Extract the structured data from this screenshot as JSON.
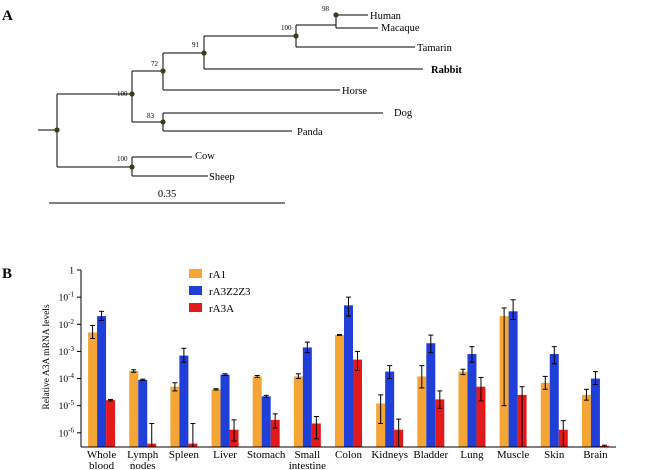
{
  "panel_a": {
    "label": "A",
    "scale_label": "0.35",
    "highlight_color": "#e31a1c",
    "node_color": "#3b3b14",
    "leaves": [
      {
        "id": "human",
        "name": "Human",
        "highlight": false
      },
      {
        "id": "macaque",
        "name": "Macaque",
        "highlight": false
      },
      {
        "id": "tamarin",
        "name": "Tamarin",
        "highlight": false
      },
      {
        "id": "rabbit",
        "name": "Rabbit",
        "highlight": true
      },
      {
        "id": "horse",
        "name": "Horse",
        "highlight": false
      },
      {
        "id": "dog",
        "name": "Dog",
        "highlight": false
      },
      {
        "id": "panda",
        "name": "Panda",
        "highlight": false
      },
      {
        "id": "cow",
        "name": "Cow",
        "highlight": false
      },
      {
        "id": "sheep",
        "name": "Sheep",
        "highlight": false
      }
    ],
    "bootstrap": [
      {
        "id": "b1",
        "value": "98"
      },
      {
        "id": "b2",
        "value": "100"
      },
      {
        "id": "b3",
        "value": "91"
      },
      {
        "id": "b4",
        "value": "72"
      },
      {
        "id": "b5",
        "value": "100"
      },
      {
        "id": "b6",
        "value": "83"
      },
      {
        "id": "b7",
        "value": "100"
      }
    ]
  },
  "chart_data": {
    "panel_label": "B",
    "type": "bar",
    "scale": "log",
    "ylabel": "Relative A3A mRNA levels",
    "ylim": [
      3e-07,
      1
    ],
    "yticks": [
      {
        "value": 1,
        "base": "1",
        "exp": ""
      },
      {
        "value": 0.1,
        "base": "10",
        "exp": "-1"
      },
      {
        "value": 0.01,
        "base": "10",
        "exp": "-2"
      },
      {
        "value": 0.001,
        "base": "10",
        "exp": "-3"
      },
      {
        "value": 0.0001,
        "base": "10",
        "exp": "-4"
      },
      {
        "value": 1e-05,
        "base": "10",
        "exp": "-5"
      },
      {
        "value": 1e-06,
        "base": "10",
        "exp": "-6"
      }
    ],
    "categories": [
      {
        "line1": "Whole",
        "line2": "blood"
      },
      {
        "line1": "Lymph",
        "line2": "nodes"
      },
      {
        "line1": "Spleen",
        "line2": ""
      },
      {
        "line1": "Liver",
        "line2": ""
      },
      {
        "line1": "Stomach",
        "line2": ""
      },
      {
        "line1": "Small",
        "line2": "intestine"
      },
      {
        "line1": "Colon",
        "line2": ""
      },
      {
        "line1": "Kidneys",
        "line2": ""
      },
      {
        "line1": "Bladder",
        "line2": ""
      },
      {
        "line1": "Lung",
        "line2": ""
      },
      {
        "line1": "Muscle",
        "line2": ""
      },
      {
        "line1": "Skin",
        "line2": ""
      },
      {
        "line1": "Brain",
        "line2": ""
      }
    ],
    "legend_position": "top-left",
    "series": [
      {
        "name": "rA1",
        "color": "#f5a534",
        "values": [
          0.005,
          0.00019,
          5e-05,
          4e-05,
          0.00012,
          0.00012,
          0.004,
          1.2e-05,
          0.00012,
          0.00018,
          0.02,
          7e-05,
          2.5e-05
        ],
        "err_low": [
          0.003,
          0.00017,
          3.5e-05,
          3.8e-05,
          0.00011,
          0.0001,
          0.0039,
          2.2e-06,
          4.5e-05,
          0.00014,
          1e-05,
          4e-05,
          1.6e-05
        ],
        "err_high": [
          0.009,
          0.00021,
          7e-05,
          4.2e-05,
          0.00013,
          0.00015,
          0.0042,
          2.5e-05,
          0.0003,
          0.00022,
          0.04,
          0.00012,
          4e-05
        ]
      },
      {
        "name": "rA3Z2Z3",
        "color": "#1f3fd8",
        "values": [
          0.02,
          9e-05,
          0.0007,
          0.00014,
          2.2e-05,
          0.0014,
          0.05,
          0.00018,
          0.002,
          0.0008,
          0.03,
          0.0008,
          0.0001
        ],
        "err_low": [
          0.014,
          8.5e-05,
          0.0004,
          0.00013,
          2e-05,
          0.0009,
          0.02,
          0.0001,
          0.0009,
          0.0004,
          0.015,
          0.00035,
          6e-05
        ],
        "err_high": [
          0.03,
          9.5e-05,
          0.0013,
          0.00015,
          2.4e-05,
          0.0022,
          0.1,
          0.0003,
          0.004,
          0.0015,
          0.08,
          0.0015,
          0.00018
        ]
      },
      {
        "name": "rA3A",
        "color": "#e31a1c",
        "values": [
          1.6e-05,
          4e-07,
          4e-07,
          1.3e-06,
          3e-06,
          2.2e-06,
          0.0005,
          1.3e-06,
          1.7e-05,
          5e-05,
          2.5e-05,
          1.3e-06,
          3.3e-07
        ],
        "err_low": [
          1.5e-05,
          3e-07,
          3e-07,
          5e-07,
          1.5e-06,
          6e-07,
          0.0002,
          3e-07,
          8e-06,
          1.5e-05,
          3e-07,
          3e-07,
          3e-07
        ],
        "err_high": [
          1.7e-05,
          2.2e-06,
          2.2e-06,
          3e-06,
          5e-06,
          4e-06,
          0.001,
          3.2e-06,
          3.5e-05,
          0.00011,
          5e-05,
          2.8e-06,
          3.5e-07
        ]
      }
    ]
  }
}
